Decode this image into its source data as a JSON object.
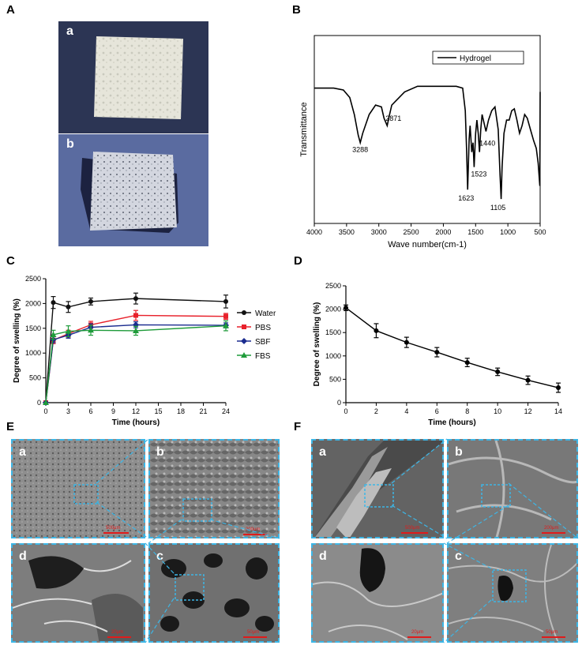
{
  "panel_letters": {
    "A": "A",
    "B": "B",
    "C": "C",
    "D": "D",
    "E": "E",
    "F": "F"
  },
  "photo_labels": {
    "a": "a",
    "b": "b"
  },
  "sem_labels": {
    "a": "a",
    "b": "b",
    "c": "c",
    "d": "d"
  },
  "sem_scales": {
    "E": [
      "500μm",
      "200μm",
      "50μm",
      "20μm"
    ],
    "F": [
      "500μm",
      "200μm",
      "50μm",
      "20μm"
    ]
  },
  "colors": {
    "water": "#111111",
    "pbs": "#e8212b",
    "sbf": "#1b2c8f",
    "fbs": "#1f9b3a",
    "dashed": "#3db6e6",
    "scale": "#e01b1b"
  },
  "chart_data": [
    {
      "panel": "B",
      "type": "line",
      "xlabel": "Wave number(cm-1)",
      "ylabel": "Transmittance",
      "xlim": [
        4000,
        500
      ],
      "xticks": [
        4000,
        3500,
        3000,
        2500,
        2000,
        1500,
        1000,
        500
      ],
      "legend": {
        "position": "top-right",
        "entries": [
          "Hydrogel"
        ]
      },
      "series": [
        {
          "name": "Hydrogel",
          "x": [
            4000,
            3700,
            3550,
            3450,
            3380,
            3320,
            3288,
            3250,
            3150,
            3050,
            2960,
            2920,
            2871,
            2840,
            2800,
            2600,
            2400,
            2200,
            2000,
            1800,
            1700,
            1660,
            1640,
            1623,
            1600,
            1585,
            1560,
            1540,
            1523,
            1500,
            1480,
            1460,
            1440,
            1420,
            1400,
            1380,
            1340,
            1300,
            1250,
            1200,
            1150,
            1120,
            1105,
            1090,
            1060,
            1020,
            980,
            940,
            900,
            860,
            820,
            780,
            740,
            700,
            650,
            600,
            560,
            530,
            505,
            500
          ],
          "y": [
            0.72,
            0.72,
            0.71,
            0.67,
            0.58,
            0.47,
            0.43,
            0.48,
            0.58,
            0.63,
            0.62,
            0.56,
            0.52,
            0.57,
            0.63,
            0.7,
            0.73,
            0.73,
            0.73,
            0.73,
            0.72,
            0.6,
            0.4,
            0.18,
            0.45,
            0.52,
            0.38,
            0.43,
            0.3,
            0.48,
            0.55,
            0.48,
            0.38,
            0.5,
            0.58,
            0.55,
            0.49,
            0.55,
            0.6,
            0.62,
            0.5,
            0.25,
            0.13,
            0.3,
            0.48,
            0.55,
            0.55,
            0.6,
            0.61,
            0.55,
            0.48,
            0.52,
            0.58,
            0.56,
            0.5,
            0.44,
            0.4,
            0.32,
            0.2,
            0.7
          ]
        }
      ],
      "annotations": [
        "3288",
        "2871",
        "1440",
        "1523",
        "1623",
        "1105"
      ]
    },
    {
      "panel": "C",
      "type": "line",
      "xlabel": "Time (hours)",
      "ylabel": "Degree of swelling (%)",
      "xlim": [
        0,
        24
      ],
      "ylim": [
        0,
        2500
      ],
      "xticks": [
        0,
        3,
        6,
        9,
        12,
        15,
        18,
        21,
        24
      ],
      "yticks": [
        0,
        500,
        1000,
        1500,
        2000,
        2500
      ],
      "legend": {
        "position": "right"
      },
      "x": [
        0,
        1,
        3,
        6,
        12,
        24
      ],
      "series": [
        {
          "name": "Water",
          "values": [
            0,
            2020,
            1930,
            2040,
            2100,
            2040
          ],
          "errors": [
            0,
            120,
            110,
            70,
            110,
            130
          ]
        },
        {
          "name": "PBS",
          "values": [
            0,
            1260,
            1390,
            1570,
            1760,
            1740
          ],
          "errors": [
            0,
            70,
            70,
            70,
            100,
            60
          ]
        },
        {
          "name": "SBF",
          "values": [
            0,
            1270,
            1360,
            1520,
            1570,
            1560
          ],
          "errors": [
            0,
            60,
            60,
            70,
            60,
            50
          ]
        },
        {
          "name": "FBS",
          "values": [
            0,
            1370,
            1440,
            1460,
            1450,
            1550
          ],
          "errors": [
            0,
            90,
            110,
            100,
            90,
            100
          ]
        }
      ]
    },
    {
      "panel": "D",
      "type": "line",
      "xlabel": "Time (hours)",
      "ylabel": "Degree of swelling (%)",
      "xlim": [
        0,
        14
      ],
      "ylim": [
        0,
        2500
      ],
      "xticks": [
        0,
        2,
        4,
        6,
        8,
        10,
        12,
        14
      ],
      "yticks": [
        0,
        500,
        1000,
        1500,
        2000,
        2500
      ],
      "x": [
        0,
        2,
        4,
        6,
        8,
        10,
        12,
        14
      ],
      "series": [
        {
          "values": [
            2030,
            1540,
            1290,
            1080,
            860,
            660,
            480,
            320
          ],
          "errors": [
            60,
            150,
            110,
            100,
            90,
            80,
            90,
            100
          ]
        }
      ]
    }
  ]
}
